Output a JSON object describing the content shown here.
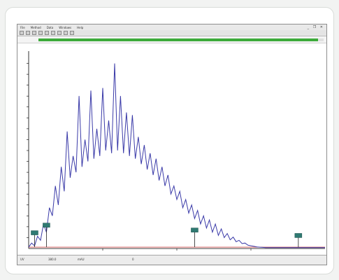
{
  "menu": [
    "File",
    "Method",
    "Data",
    "Windows",
    "Help"
  ],
  "window_controls": "_ ❐ ✕",
  "toolbar": {
    "icons": [
      "new-icon",
      "open-icon",
      "save-icon",
      "print-icon",
      "zoom-icon",
      "cursor-icon",
      "marker-icon",
      "settings-icon",
      "help-icon"
    ]
  },
  "colors": {
    "progress": "#3caa3a",
    "trace": "#3a3aa8",
    "baseline": "#d05050",
    "marker": "#2f7a72"
  },
  "progress": {
    "fraction": 0.98
  },
  "chart_data": {
    "type": "line",
    "y_ticks": [
      40,
      80,
      120,
      160,
      200,
      240,
      280,
      320,
      360,
      400,
      440,
      480,
      520,
      560,
      600,
      640,
      680
    ],
    "ylim": [
      0,
      720
    ],
    "xlim": [
      0,
      100
    ],
    "x_tick_values": [
      25,
      50,
      75
    ],
    "series": [
      {
        "x": [
          0,
          1,
          2,
          3,
          4,
          5,
          6,
          7,
          8,
          9,
          10,
          11,
          12,
          13,
          14,
          15,
          16,
          17,
          18,
          19,
          20,
          21,
          22,
          23,
          24,
          25,
          26,
          27,
          28,
          29,
          30,
          31,
          32,
          33,
          34,
          35,
          36,
          37,
          38,
          39,
          40,
          41,
          42,
          43,
          44,
          45,
          46,
          47,
          48,
          49,
          50,
          51,
          52,
          53,
          54,
          55,
          56,
          57,
          58,
          59,
          60,
          61,
          62,
          63,
          64,
          65,
          66,
          67,
          68,
          69,
          70,
          71,
          72,
          73,
          74,
          75,
          76,
          77,
          78,
          79,
          80,
          85,
          90,
          95,
          100
        ],
        "y": [
          5,
          20,
          10,
          45,
          30,
          90,
          60,
          150,
          120,
          230,
          160,
          300,
          210,
          430,
          260,
          340,
          280,
          560,
          300,
          400,
          320,
          580,
          330,
          440,
          340,
          590,
          360,
          470,
          350,
          680,
          360,
          560,
          350,
          500,
          340,
          490,
          330,
          410,
          310,
          380,
          290,
          350,
          270,
          330,
          250,
          300,
          230,
          270,
          200,
          230,
          180,
          210,
          150,
          180,
          130,
          160,
          110,
          140,
          90,
          120,
          75,
          105,
          60,
          90,
          48,
          72,
          40,
          55,
          32,
          42,
          25,
          30,
          18,
          20,
          12,
          10,
          8,
          6,
          5,
          4,
          3,
          3,
          3,
          3,
          3
        ]
      }
    ],
    "baseline_y": 5
  },
  "markers": [
    "",
    "",
    "",
    ""
  ],
  "status": [
    "UV",
    "380.0",
    "mAU",
    "0"
  ]
}
